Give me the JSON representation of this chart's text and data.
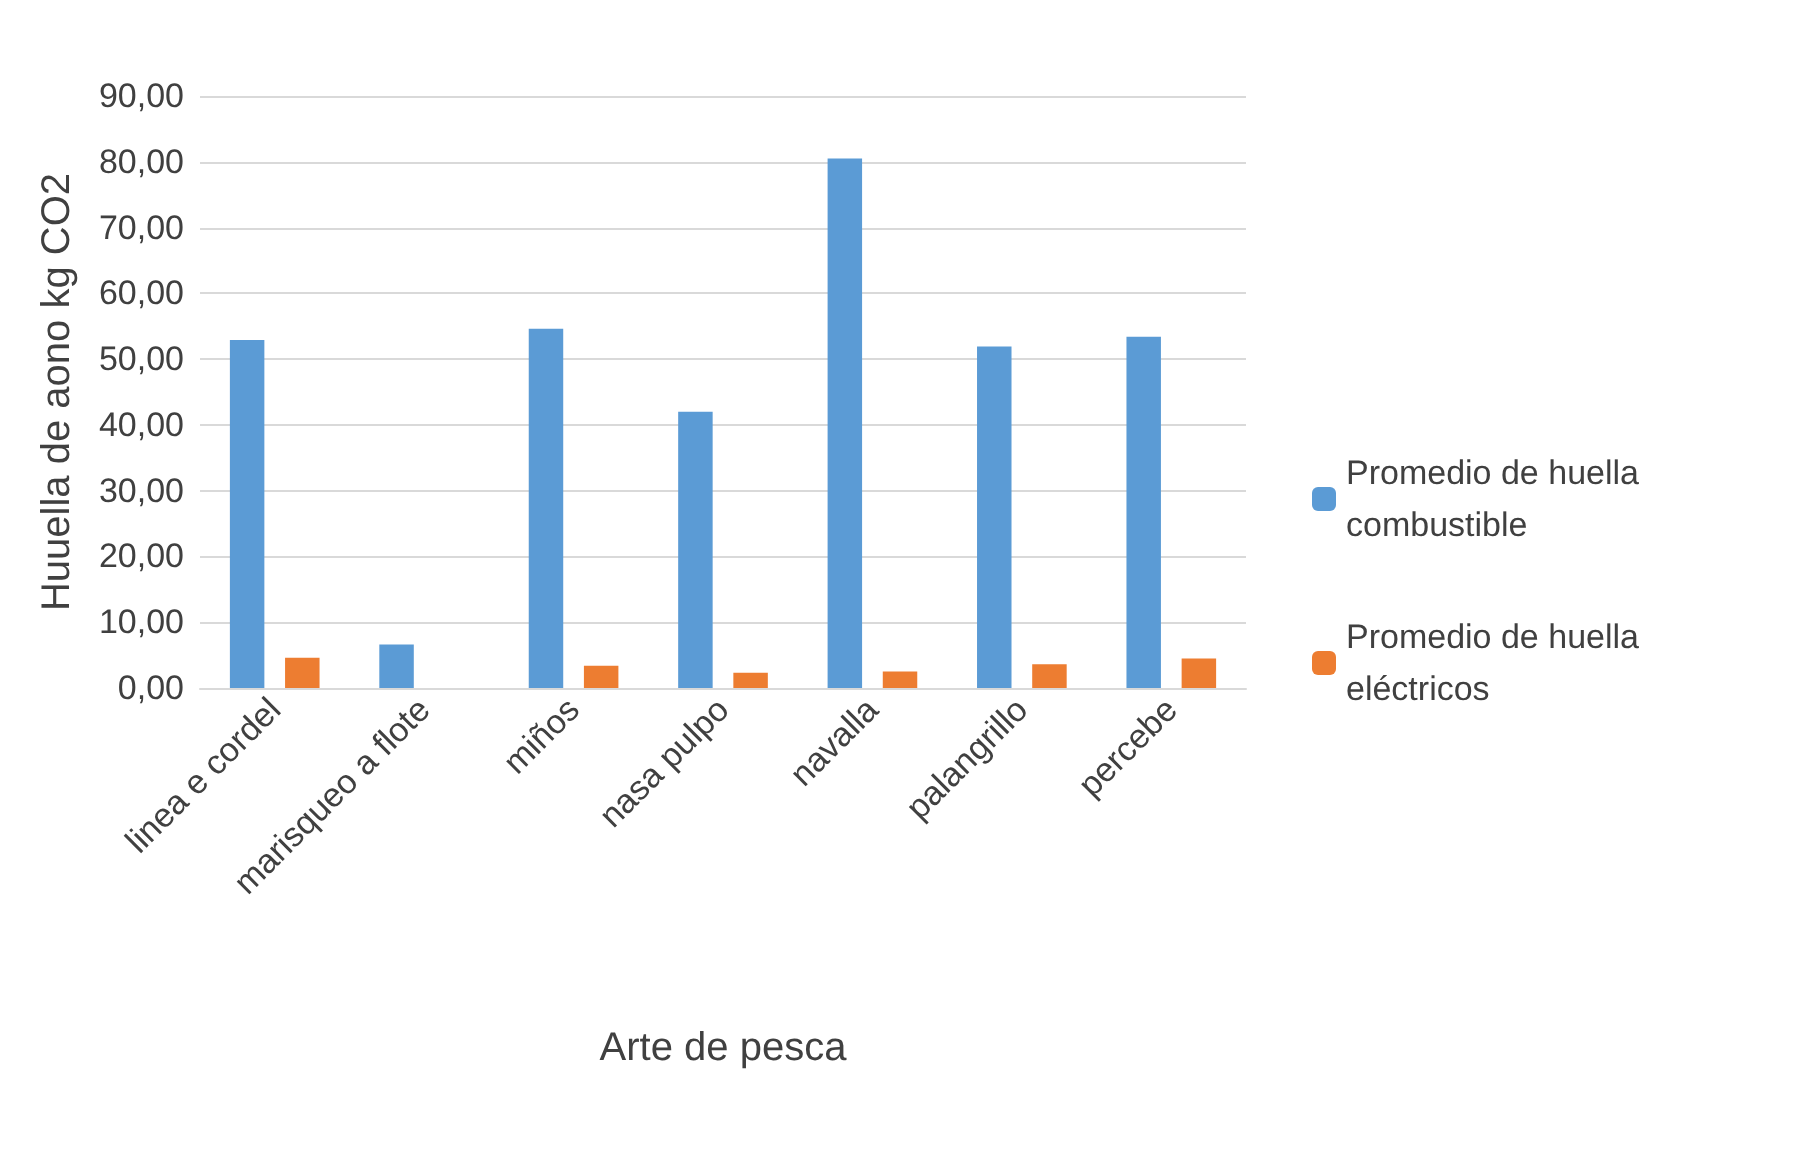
{
  "chart_data": {
    "type": "bar",
    "xlabel": "Arte de pesca",
    "ylabel": "Huuella de aono kg CO2",
    "categories": [
      "linea e cordel",
      "marisqueo a flote",
      "miños",
      "nasa pulpo",
      "navalla",
      "palangrillo",
      "percebe"
    ],
    "series": [
      {
        "name": "Promedio de huella combustible",
        "color": "#5b9bd5",
        "values": [
          52.9,
          6.6,
          54.6,
          42.0,
          80.5,
          51.9,
          53.4
        ]
      },
      {
        "name": "Promedio de huella eléctricos",
        "color": "#ed7d31",
        "values": [
          4.6,
          null,
          3.4,
          2.3,
          2.5,
          3.6,
          4.5
        ]
      }
    ],
    "ylim": [
      0,
      90
    ],
    "yticks": [
      {
        "value": 0,
        "label": "0,00"
      },
      {
        "value": 10,
        "label": "10,00"
      },
      {
        "value": 20,
        "label": "20,00"
      },
      {
        "value": 30,
        "label": "30,00"
      },
      {
        "value": 40,
        "label": "40,00"
      },
      {
        "value": 50,
        "label": "50,00"
      },
      {
        "value": 60,
        "label": "60,00"
      },
      {
        "value": 70,
        "label": "70,00"
      },
      {
        "value": 80,
        "label": "80,00"
      },
      {
        "value": 90,
        "label": "90,00"
      }
    ],
    "grid": true,
    "legend": "right"
  }
}
